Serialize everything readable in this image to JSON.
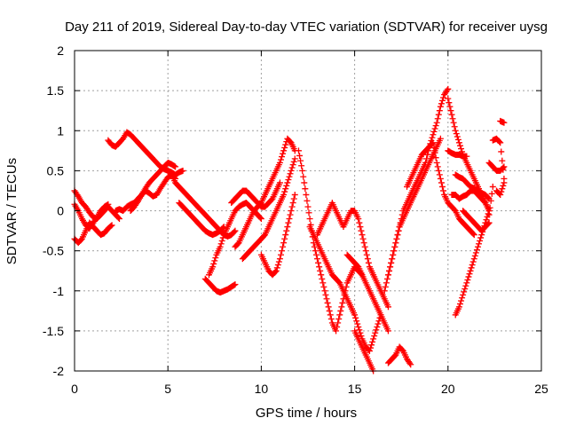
{
  "chart_data": {
    "type": "scatter",
    "title": "Day 211 of 2019, Sidereal Day-to-day VTEC variation (SDTVAR) for receiver uysg",
    "xlabel": "GPS time / hours",
    "ylabel": "SDTVAR / TECUs",
    "xlim": [
      0,
      25
    ],
    "ylim": [
      -2,
      2
    ],
    "x_ticks": [
      "0",
      "5",
      "10",
      "15",
      "20",
      "25"
    ],
    "y_ticks": [
      "2",
      "1.5",
      "1",
      "0.5",
      "0",
      "-0.5",
      "-1",
      "-1.5",
      "-2"
    ],
    "grid": true,
    "marker": "plus",
    "color": "#ff0000",
    "series": [
      {
        "x": [
          0.0,
          0.2,
          0.4,
          0.6,
          0.8,
          1.0,
          1.2,
          1.4,
          1.6,
          1.8,
          2.0,
          2.2,
          2.4
        ],
        "y": [
          0.25,
          0.18,
          0.1,
          0.05,
          -0.02,
          -0.08,
          -0.1,
          -0.05,
          0.0,
          0.05,
          0.0,
          -0.05,
          -0.1
        ]
      },
      {
        "x": [
          0.0,
          0.2,
          0.4,
          0.6,
          0.8,
          1.0,
          1.2,
          1.4,
          1.6,
          1.8,
          2.0
        ],
        "y": [
          -0.35,
          -0.4,
          -0.35,
          -0.25,
          -0.15,
          -0.2,
          -0.25,
          -0.3,
          -0.28,
          -0.22,
          -0.18
        ]
      },
      {
        "x": [
          0.0,
          0.2,
          0.4,
          0.6,
          0.8,
          1.0,
          1.2,
          1.4,
          1.6,
          1.8
        ],
        "y": [
          0.08,
          0.0,
          -0.1,
          -0.18,
          -0.22,
          -0.15,
          -0.08,
          0.0,
          0.05,
          0.08
        ]
      },
      {
        "x": [
          1.8,
          2.0,
          2.2,
          2.4,
          2.6,
          2.8,
          3.0,
          3.2,
          3.4,
          3.6,
          3.8,
          4.0,
          4.2,
          4.4,
          4.6,
          4.8,
          5.0,
          5.2,
          5.4,
          5.6,
          5.8
        ],
        "y": [
          0.88,
          0.82,
          0.8,
          0.85,
          0.9,
          0.98,
          0.95,
          0.9,
          0.85,
          0.8,
          0.75,
          0.7,
          0.65,
          0.6,
          0.55,
          0.52,
          0.5,
          0.48,
          0.45,
          0.48,
          0.5
        ]
      },
      {
        "x": [
          2.2,
          2.4,
          2.6,
          2.8,
          3.0,
          3.2,
          3.4,
          3.6,
          3.8,
          4.0,
          4.2,
          4.4,
          4.6,
          4.8,
          5.0,
          5.2,
          5.4
        ],
        "y": [
          0.0,
          0.02,
          0.0,
          0.05,
          0.08,
          0.1,
          0.15,
          0.2,
          0.28,
          0.35,
          0.4,
          0.45,
          0.5,
          0.55,
          0.6,
          0.58,
          0.55
        ]
      },
      {
        "x": [
          3.0,
          3.2,
          3.4,
          3.6,
          3.8,
          4.0,
          4.2,
          4.4,
          4.6,
          4.8,
          5.0,
          5.2,
          5.4
        ],
        "y": [
          0.0,
          0.05,
          0.12,
          0.2,
          0.25,
          0.22,
          0.18,
          0.2,
          0.28,
          0.35,
          0.42,
          0.45,
          0.4
        ]
      },
      {
        "x": [
          5.0,
          5.2,
          5.4,
          5.6,
          5.8,
          6.0,
          6.2,
          6.4,
          6.6,
          6.8,
          7.0,
          7.2,
          7.4,
          7.6,
          7.8,
          8.0,
          8.2,
          8.4,
          8.6
        ],
        "y": [
          0.5,
          0.45,
          0.35,
          0.3,
          0.25,
          0.2,
          0.15,
          0.1,
          0.05,
          0.0,
          -0.05,
          -0.1,
          -0.15,
          -0.2,
          -0.25,
          -0.3,
          -0.32,
          -0.3,
          -0.25
        ]
      },
      {
        "x": [
          5.6,
          5.8,
          6.0,
          6.2,
          6.4,
          6.6,
          6.8,
          7.0,
          7.2,
          7.4,
          7.6,
          7.8,
          8.0
        ],
        "y": [
          0.1,
          0.05,
          0.0,
          -0.05,
          -0.1,
          -0.15,
          -0.2,
          -0.25,
          -0.28,
          -0.3,
          -0.28,
          -0.25,
          -0.2
        ]
      },
      {
        "x": [
          7.0,
          7.2,
          7.4,
          7.6,
          7.8,
          8.0,
          8.2,
          8.4,
          8.6
        ],
        "y": [
          -0.85,
          -0.9,
          -0.95,
          -1.0,
          -1.02,
          -1.0,
          -0.98,
          -0.95,
          -0.92
        ]
      },
      {
        "x": [
          7.2,
          7.4,
          7.6,
          7.8,
          8.0,
          8.2,
          8.4,
          8.6,
          8.8,
          9.0,
          9.2,
          9.4,
          9.6,
          9.8,
          10.0
        ],
        "y": [
          -0.8,
          -0.7,
          -0.55,
          -0.45,
          -0.3,
          -0.2,
          -0.1,
          0.0,
          0.05,
          0.08,
          0.1,
          0.05,
          0.0,
          -0.05,
          -0.1
        ]
      },
      {
        "x": [
          8.4,
          8.6,
          8.8,
          9.0,
          9.2,
          9.4,
          9.6,
          9.8,
          10.0,
          10.2,
          10.4,
          10.6,
          10.8,
          11.0
        ],
        "y": [
          0.1,
          0.15,
          0.2,
          0.25,
          0.25,
          0.2,
          0.15,
          0.1,
          0.05,
          0.05,
          0.1,
          0.15,
          0.25,
          0.35
        ]
      },
      {
        "x": [
          8.6,
          8.8,
          9.0,
          9.2,
          9.4,
          9.6,
          9.8,
          10.0,
          10.2,
          10.4,
          10.6,
          10.8,
          11.0,
          11.2,
          11.4,
          11.6,
          11.8
        ],
        "y": [
          -0.45,
          -0.4,
          -0.3,
          -0.2,
          -0.1,
          0.0,
          0.05,
          0.1,
          0.2,
          0.3,
          0.4,
          0.5,
          0.6,
          0.75,
          0.9,
          0.85,
          0.75
        ]
      },
      {
        "x": [
          9.0,
          9.2,
          9.4,
          9.6,
          9.8,
          10.0,
          10.2,
          10.4,
          10.6,
          10.8,
          11.0,
          11.2,
          11.4,
          11.6,
          11.8
        ],
        "y": [
          -0.6,
          -0.55,
          -0.5,
          -0.45,
          -0.4,
          -0.35,
          -0.3,
          -0.2,
          -0.1,
          0.0,
          0.1,
          0.2,
          0.35,
          0.5,
          0.65
        ]
      },
      {
        "x": [
          10.0,
          10.2,
          10.4,
          10.6,
          10.8,
          11.0,
          11.2,
          11.4,
          11.6,
          11.8
        ],
        "y": [
          -0.55,
          -0.65,
          -0.75,
          -0.8,
          -0.75,
          -0.6,
          -0.4,
          -0.2,
          0.0,
          0.2
        ]
      },
      {
        "x": [
          12.0,
          12.2,
          12.4,
          12.6,
          12.8,
          13.0,
          13.2,
          13.4,
          13.6,
          13.8,
          14.0,
          14.2,
          14.4,
          14.6,
          14.8,
          15.0,
          15.2,
          15.4
        ],
        "y": [
          0.75,
          0.5,
          0.2,
          -0.1,
          -0.4,
          -0.6,
          -0.8,
          -1.0,
          -1.2,
          -1.4,
          -1.5,
          -1.3,
          -1.1,
          -0.9,
          -0.8,
          -0.7,
          -0.75,
          -0.8
        ]
      },
      {
        "x": [
          12.6,
          12.8,
          13.0,
          13.2,
          13.4,
          13.6,
          13.8,
          14.0,
          14.2,
          14.4,
          14.6,
          14.8,
          15.0,
          15.2,
          15.4,
          15.6,
          15.8,
          16.0,
          16.2,
          16.4
        ],
        "y": [
          -0.2,
          -0.3,
          -0.4,
          -0.5,
          -0.6,
          -0.7,
          -0.8,
          -0.85,
          -0.9,
          -1.0,
          -1.1,
          -1.2,
          -1.3,
          -1.45,
          -1.6,
          -1.7,
          -1.75,
          -1.6,
          -1.45,
          -1.3
        ]
      },
      {
        "x": [
          13.0,
          13.2,
          13.4,
          13.6,
          13.8,
          14.0,
          14.2,
          14.4,
          14.6,
          14.8,
          15.0,
          15.2,
          15.4,
          15.6,
          15.8,
          16.0,
          16.2,
          16.4,
          16.6,
          16.8
        ],
        "y": [
          -0.3,
          -0.2,
          -0.1,
          0.0,
          0.1,
          0.0,
          -0.1,
          -0.2,
          -0.1,
          0.0,
          0.0,
          -0.1,
          -0.3,
          -0.5,
          -0.7,
          -0.8,
          -0.9,
          -1.0,
          -1.1,
          -1.2
        ]
      },
      {
        "x": [
          14.6,
          14.8,
          15.0,
          15.2,
          15.4,
          15.6,
          15.8,
          16.0,
          16.2,
          16.4,
          16.6,
          16.8
        ],
        "y": [
          -0.55,
          -0.6,
          -0.65,
          -0.7,
          -0.8,
          -0.9,
          -1.0,
          -1.1,
          -1.2,
          -1.3,
          -1.4,
          -1.5
        ]
      },
      {
        "x": [
          15.0,
          15.2,
          15.4,
          15.6,
          15.8,
          16.0
        ],
        "y": [
          -1.5,
          -1.6,
          -1.7,
          -1.8,
          -1.9,
          -2.0
        ]
      },
      {
        "x": [
          16.8,
          17.0,
          17.2,
          17.4,
          17.6,
          17.8,
          18.0
        ],
        "y": [
          -1.9,
          -1.85,
          -1.8,
          -1.7,
          -1.75,
          -1.85,
          -1.92
        ]
      },
      {
        "x": [
          16.8,
          17.0,
          17.2,
          17.4,
          17.6,
          17.8,
          18.0,
          18.2,
          18.4,
          18.6,
          18.8,
          19.0,
          19.2,
          19.4,
          19.6,
          19.8,
          20.0
        ],
        "y": [
          -0.8,
          -0.6,
          -0.4,
          -0.2,
          0.0,
          0.1,
          0.2,
          0.3,
          0.4,
          0.5,
          0.6,
          0.8,
          0.95,
          1.1,
          1.3,
          1.45,
          1.52
        ]
      },
      {
        "x": [
          16.6,
          16.8,
          17.0,
          17.2,
          17.4,
          17.6,
          17.8,
          18.0,
          18.2,
          18.4,
          18.6,
          18.8,
          19.0,
          19.2,
          19.4,
          19.6
        ],
        "y": [
          -1.0,
          -0.8,
          -0.6,
          -0.4,
          -0.2,
          -0.1,
          0.0,
          0.1,
          0.2,
          0.3,
          0.4,
          0.5,
          0.6,
          0.7,
          0.8,
          0.9
        ]
      },
      {
        "x": [
          17.8,
          18.0,
          18.2,
          18.4,
          18.6,
          18.8,
          19.0,
          19.2,
          19.4,
          19.6,
          19.8,
          20.0,
          20.2,
          20.4,
          20.6,
          20.8,
          21.0,
          21.2,
          21.4
        ],
        "y": [
          0.3,
          0.4,
          0.5,
          0.6,
          0.7,
          0.75,
          0.8,
          0.85,
          0.6,
          0.4,
          0.2,
          0.1,
          0.05,
          0.0,
          -0.1,
          -0.15,
          -0.2,
          -0.25,
          -0.3
        ]
      },
      {
        "x": [
          20.0,
          20.2,
          20.4,
          20.6,
          20.8,
          21.0,
          21.2,
          21.4,
          21.6,
          21.8,
          22.0,
          22.2
        ],
        "y": [
          1.4,
          1.2,
          1.0,
          0.85,
          0.7,
          0.6,
          0.5,
          0.4,
          0.3,
          0.2,
          0.1,
          0.0
        ]
      },
      {
        "x": [
          20.2,
          20.4,
          20.6,
          20.8,
          21.0,
          21.2,
          21.4,
          21.6,
          21.8,
          22.0,
          22.2
        ],
        "y": [
          0.2,
          0.2,
          0.15,
          0.18,
          0.2,
          0.25,
          0.25,
          0.2,
          0.15,
          0.1,
          0.0
        ]
      },
      {
        "x": [
          20.4,
          20.6,
          20.8,
          21.0,
          21.2,
          21.4,
          21.6,
          21.8,
          22.0,
          22.2
        ],
        "y": [
          0.45,
          0.42,
          0.4,
          0.35,
          0.3,
          0.28,
          0.25,
          0.22,
          0.2,
          0.15
        ]
      },
      {
        "x": [
          20.0,
          20.2,
          20.4,
          20.6,
          20.8,
          21.0
        ],
        "y": [
          0.75,
          0.72,
          0.7,
          0.7,
          0.68,
          0.68
        ]
      },
      {
        "x": [
          20.4,
          20.6,
          20.8,
          21.0,
          21.2,
          21.4,
          21.6,
          21.8,
          22.0,
          22.2
        ],
        "y": [
          -1.3,
          -1.2,
          -1.05,
          -0.9,
          -0.75,
          -0.6,
          -0.45,
          -0.3,
          -0.15,
          0.0
        ]
      },
      {
        "x": [
          22.2,
          22.4,
          22.6,
          22.8,
          23.0
        ],
        "y": [
          0.6,
          0.55,
          0.5,
          0.5,
          0.55
        ]
      },
      {
        "x": [
          22.4,
          22.6,
          22.8,
          23.0
        ],
        "y": [
          0.88,
          0.9,
          0.85,
          0.4
        ]
      },
      {
        "x": [
          22.6,
          22.8,
          23.0
        ],
        "y": [
          0.25,
          0.2,
          0.35
        ]
      },
      {
        "x": [
          22.8,
          23.0
        ],
        "y": [
          1.12,
          1.1
        ]
      },
      {
        "x": [
          22.2,
          22.4
        ],
        "y": [
          -0.05,
          0.3
        ]
      },
      {
        "x": [
          20.8,
          21.0,
          21.2,
          21.4,
          21.6,
          21.8,
          22.0,
          22.2
        ],
        "y": [
          0.0,
          -0.05,
          -0.1,
          -0.15,
          -0.2,
          -0.25,
          -0.2,
          -0.15
        ]
      }
    ]
  }
}
